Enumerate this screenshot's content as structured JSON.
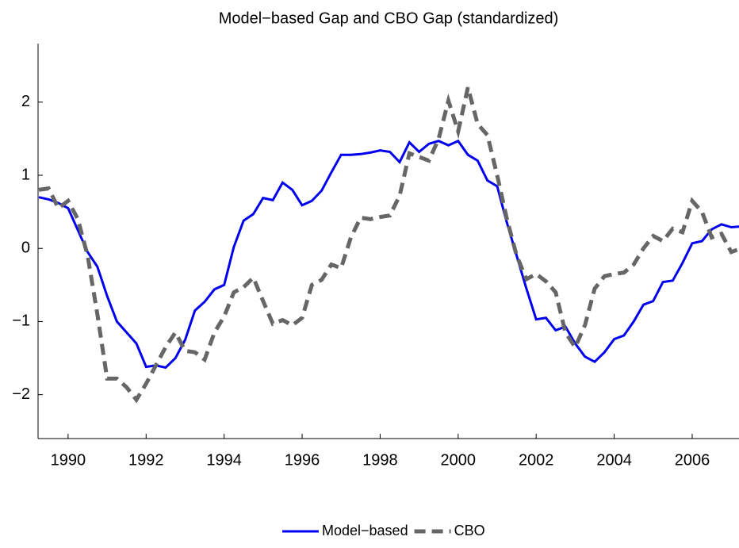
{
  "chart_data": {
    "type": "line",
    "title": "Model−based Gap and CBO Gap (standardized)",
    "x": [
      1989.25,
      1989.5,
      1989.75,
      1990,
      1990.25,
      1990.5,
      1990.75,
      1991,
      1991.25,
      1991.5,
      1991.75,
      1992,
      1992.25,
      1992.5,
      1992.75,
      1993,
      1993.25,
      1993.5,
      1993.75,
      1994,
      1994.25,
      1994.5,
      1994.75,
      1995,
      1995.25,
      1995.5,
      1995.75,
      1996,
      1996.25,
      1996.5,
      1996.75,
      1997,
      1997.25,
      1997.5,
      1997.75,
      1998,
      1998.25,
      1998.5,
      1998.75,
      1999,
      1999.25,
      1999.5,
      1999.75,
      2000,
      2000.25,
      2000.5,
      2000.75,
      2001,
      2001.25,
      2001.5,
      2001.75,
      2002,
      2002.25,
      2002.5,
      2002.75,
      2003,
      2003.25,
      2003.5,
      2003.75,
      2004,
      2004.25,
      2004.5,
      2004.75,
      2005,
      2005.25,
      2005.5,
      2005.75,
      2006,
      2006.25,
      2006.5,
      2006.75,
      2007,
      2007.25
    ],
    "series": [
      {
        "name": "Model−based",
        "color": "#0000ee",
        "dashed": false,
        "values": [
          0.7,
          0.67,
          0.62,
          0.55,
          0.25,
          -0.05,
          -0.25,
          -0.65,
          -1.0,
          -1.15,
          -1.3,
          -1.62,
          -1.6,
          -1.63,
          -1.5,
          -1.25,
          -0.85,
          -0.73,
          -0.56,
          -0.5,
          0.02,
          0.38,
          0.47,
          0.69,
          0.66,
          0.9,
          0.8,
          0.59,
          0.65,
          0.79,
          1.04,
          1.28,
          1.28,
          1.29,
          1.31,
          1.34,
          1.32,
          1.18,
          1.45,
          1.32,
          1.43,
          1.47,
          1.41,
          1.47,
          1.28,
          1.2,
          0.93,
          0.85,
          0.35,
          -0.1,
          -0.55,
          -0.97,
          -0.95,
          -1.12,
          -1.07,
          -1.3,
          -1.48,
          -1.55,
          -1.42,
          -1.24,
          -1.19,
          -1.0,
          -0.77,
          -0.72,
          -0.46,
          -0.44,
          -0.2,
          0.07,
          0.1,
          0.26,
          0.33,
          0.29,
          0.3
        ]
      },
      {
        "name": "CBO",
        "color": "#666666",
        "dashed": true,
        "values": [
          0.8,
          0.82,
          0.55,
          0.65,
          0.4,
          -0.1,
          -0.9,
          -1.78,
          -1.78,
          -1.9,
          -2.07,
          -1.85,
          -1.6,
          -1.35,
          -1.15,
          -1.4,
          -1.42,
          -1.52,
          -1.15,
          -0.93,
          -0.6,
          -0.53,
          -0.4,
          -0.72,
          -1.03,
          -0.98,
          -1.05,
          -0.95,
          -0.5,
          -0.43,
          -0.22,
          -0.27,
          0.15,
          0.42,
          0.4,
          0.43,
          0.45,
          0.72,
          1.3,
          1.25,
          1.2,
          1.5,
          2.02,
          1.6,
          2.2,
          1.7,
          1.55,
          1.0,
          0.4,
          -0.1,
          -0.42,
          -0.35,
          -0.45,
          -0.6,
          -1.15,
          -1.35,
          -1.05,
          -0.55,
          -0.38,
          -0.35,
          -0.33,
          -0.22,
          0.0,
          0.17,
          0.1,
          0.27,
          0.22,
          0.65,
          0.5,
          0.15,
          0.2,
          -0.05,
          0.0
        ]
      }
    ],
    "xlim": [
      1989.23,
      2007.2
    ],
    "xticks": [
      1990,
      1992,
      1994,
      1996,
      1998,
      2000,
      2002,
      2004,
      2006
    ],
    "ylim": [
      -2.6,
      2.8
    ],
    "yticks": [
      {
        "value": -2,
        "label": "−2"
      },
      {
        "value": -1,
        "label": "−1"
      },
      0,
      1,
      2
    ],
    "legend": "bottom"
  }
}
